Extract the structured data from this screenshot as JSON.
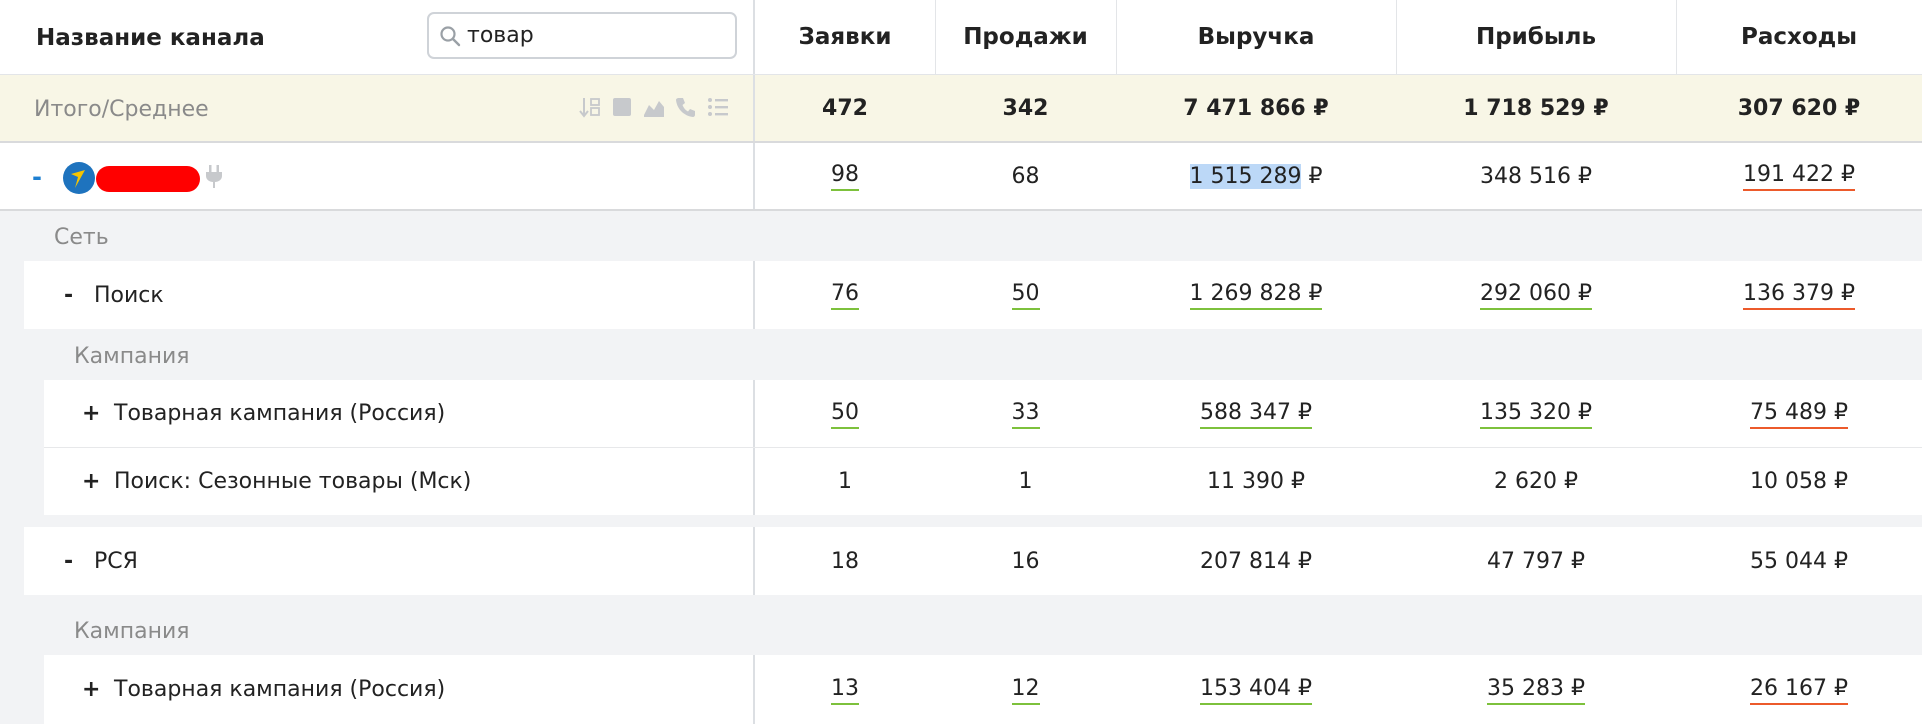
{
  "header": {
    "title": "Название канала",
    "search_value": "товар",
    "columns": [
      "Заявки",
      "Продажи",
      "Выручка",
      "Прибыль",
      "Расходы"
    ]
  },
  "total": {
    "label": "Итого/Среднее",
    "values": [
      "472",
      "342",
      "7 471 866 ₽",
      "1 718 529 ₽",
      "307 620 ₽"
    ],
    "tool_icons": [
      "sort-icon",
      "square-icon",
      "chart-icon",
      "phone-icon",
      "list-icon"
    ]
  },
  "channel": {
    "toggle": "-",
    "values": [
      "98",
      "68",
      "1 515 289",
      "348 516 ₽",
      "191 422 ₽"
    ],
    "revenue_suffix": " ₽",
    "logo_color": "#1e73be",
    "redaction_color": "#ff0000"
  },
  "groups": {
    "network_label": "Сеть",
    "campaign_label": "Кампания"
  },
  "networks": [
    {
      "toggle": "-",
      "name": "Поиск",
      "values": [
        "76",
        "50",
        "1 269 828 ₽",
        "292 060 ₽",
        "136 379 ₽"
      ],
      "campaigns": [
        {
          "toggle": "+",
          "name": "Товарная кампания (Россия)",
          "values": [
            "50",
            "33",
            "588 347 ₽",
            "135 320 ₽",
            "75 489 ₽"
          ]
        },
        {
          "toggle": "+",
          "name": "Поиск: Сезонные товары (Мск)",
          "values": [
            "1",
            "1",
            "11 390 ₽",
            "2 620 ₽",
            "10 058 ₽"
          ]
        }
      ]
    },
    {
      "toggle": "-",
      "name": "РСЯ",
      "values": [
        "18",
        "16",
        "207 814 ₽",
        "47 797 ₽",
        "55 044 ₽"
      ],
      "campaigns": [
        {
          "toggle": "+",
          "name": "Товарная кампания (Россия)",
          "values": [
            "13",
            "12",
            "153 404 ₽",
            "35 283 ₽",
            "26 167 ₽"
          ]
        }
      ]
    }
  ],
  "colors": {
    "accent_blue": "#1d7fd1",
    "underline_green": "#7dc13c",
    "underline_orange": "#ec5a2b",
    "total_bg": "#f8f6e6",
    "group_bg": "#f2f3f5"
  }
}
